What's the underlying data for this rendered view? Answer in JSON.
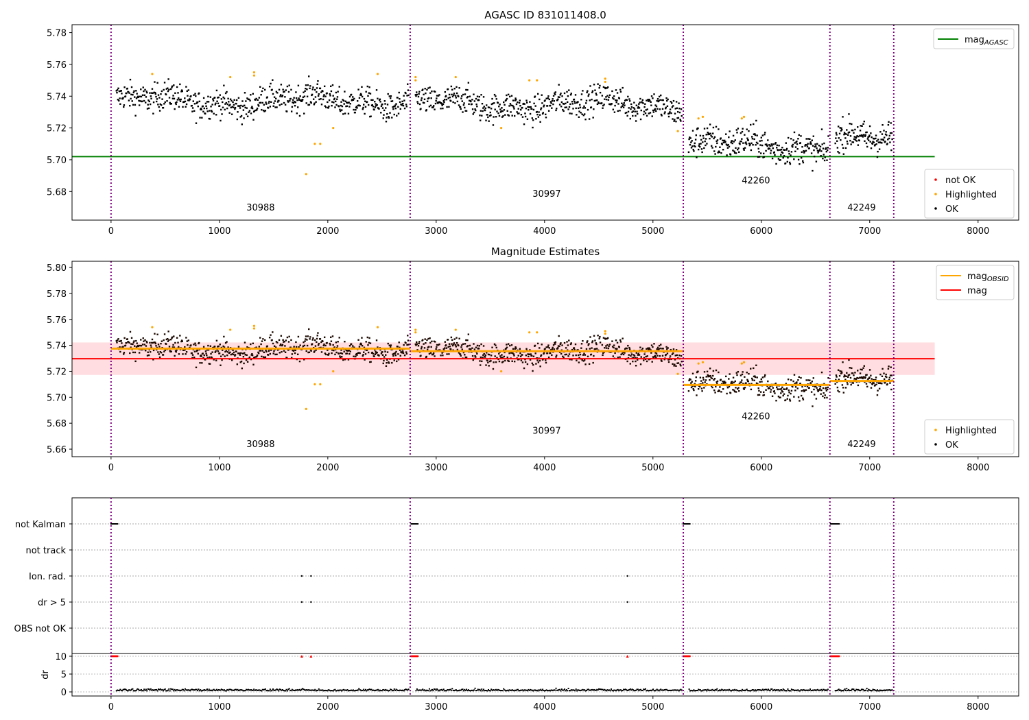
{
  "chart_data": {
    "type": "scatter",
    "title": "AGASC ID 831011408.0",
    "xlim": [
      -360,
      8375
    ],
    "xticks": [
      0,
      1000,
      2000,
      3000,
      4000,
      5000,
      6000,
      7000,
      8000
    ],
    "obsid_boundaries": [
      0,
      2760,
      5280,
      6633,
      7222
    ],
    "obsids": [
      {
        "label": "30988",
        "start": 0,
        "end": 2760,
        "mean": 5.737,
        "std": 0.0045,
        "label_x": 1380,
        "label_y_top": 5.668,
        "label_y_mid": 5.6616
      },
      {
        "label": "30997",
        "start": 2760,
        "end": 5280,
        "mean": 5.735,
        "std": 0.0045,
        "label_x": 4020,
        "label_y_top": 5.6766,
        "label_y_mid": 5.672
      },
      {
        "label": "42260",
        "start": 5280,
        "end": 6633,
        "mean": 5.709,
        "std": 0.005,
        "label_x": 5950,
        "label_y_top": 5.685,
        "label_y_mid": 5.683
      },
      {
        "label": "42249",
        "start": 6633,
        "end": 7222,
        "mean": 5.712,
        "std": 0.005,
        "label_x": 6925,
        "label_y_top": 5.668,
        "label_y_mid": 5.6616
      }
    ],
    "highlighted": [
      [
        380,
        5.754
      ],
      [
        1100,
        5.752
      ],
      [
        1320,
        5.755
      ],
      [
        1320,
        5.753
      ],
      [
        1800,
        5.691
      ],
      [
        1880,
        5.71
      ],
      [
        1930,
        5.71
      ],
      [
        2050,
        5.72
      ],
      [
        2460,
        5.754
      ],
      [
        2810,
        5.752
      ],
      [
        2810,
        5.75
      ],
      [
        3180,
        5.752
      ],
      [
        3600,
        5.72
      ],
      [
        3860,
        5.75
      ],
      [
        3930,
        5.75
      ],
      [
        4560,
        5.751
      ],
      [
        4560,
        5.749
      ],
      [
        5230,
        5.718
      ],
      [
        5420,
        5.726
      ],
      [
        5460,
        5.727
      ],
      [
        5820,
        5.726
      ],
      [
        5840,
        5.727
      ]
    ],
    "panels": [
      {
        "title": "AGASC ID 831011408.0",
        "ylim": [
          5.662,
          5.785
        ],
        "yticks": [
          "5.68",
          "5.70",
          "5.72",
          "5.74",
          "5.76",
          "5.78"
        ],
        "mag_agasc": 5.702,
        "line_xmax": 7600,
        "legend_upper": [
          {
            "label": "mag",
            "sub": "AGASC",
            "color": "#008000"
          }
        ],
        "legend_lower": [
          {
            "label": "not OK",
            "color": "#ff0000"
          },
          {
            "label": "Highlighted",
            "color": "#ffa500"
          },
          {
            "label": "OK",
            "color": "#000000"
          }
        ]
      },
      {
        "title": "Magnitude Estimates",
        "ylim": [
          5.6542,
          5.8048
        ],
        "yticks": [
          "5.66",
          "5.68",
          "5.70",
          "5.72",
          "5.74",
          "5.76",
          "5.78",
          "5.80"
        ],
        "mag": 5.7297,
        "mag_band": [
          5.7172,
          5.7422
        ],
        "line_xmax": 7600,
        "legend_upper": [
          {
            "label": "mag",
            "sub": "OBSID",
            "color": "#ffa500"
          },
          {
            "label": "mag",
            "sub": "",
            "color": "#ff0000"
          }
        ],
        "legend_lower": [
          {
            "label": "Highlighted",
            "color": "#ffa500"
          },
          {
            "label": "OK",
            "color": "#000000"
          }
        ]
      },
      {
        "flags": [
          "not Kalman",
          "not track",
          "Ion. rad.",
          "dr > 5",
          "OBS not OK"
        ],
        "not_kalman_ranges": [
          [
            0,
            60
          ],
          [
            2770,
            2830
          ],
          [
            5280,
            5340
          ],
          [
            6640,
            6720
          ]
        ],
        "ion_rad": [
          1760,
          1845,
          4765
        ],
        "dr_gt_5": [
          1760,
          1845,
          4765
        ],
        "dr_ylabel": "dr",
        "dr_ylim": [
          -1.15,
          10.77
        ],
        "dr_yticks": [
          "0",
          "5",
          "10"
        ],
        "dr_typical": 0.3,
        "dr_clip": 10
      }
    ],
    "colors": {
      "ok": "#000000",
      "highlighted": "#ffa500",
      "not_ok": "#ff0000",
      "agasc": "#008000",
      "obsid_line": "#ffa500",
      "mag": "#ff0000",
      "band": "#ffdde0",
      "vline": "#800080"
    }
  }
}
